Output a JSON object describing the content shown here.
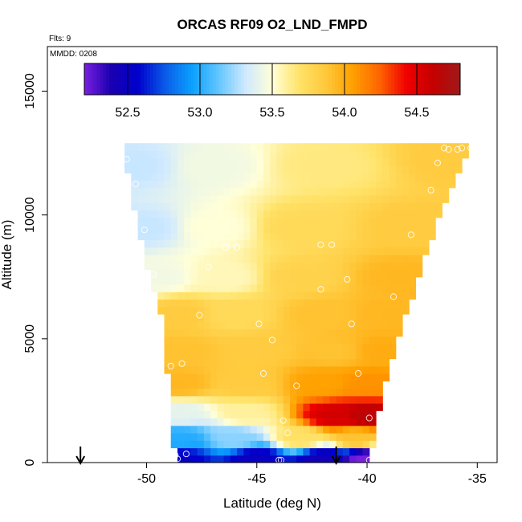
{
  "chart_data": {
    "type": "heatmap",
    "title": "ORCAS RF09 O2_LND_FMPD",
    "subtitle": "Flts: 9",
    "annotation": "MMDD: 0208",
    "xlabel": "Latitude (deg N)",
    "ylabel": "Altitude (m)",
    "xlim": [
      -54.5,
      -34.1
    ],
    "ylim": [
      0,
      16800
    ],
    "xticks": [
      -50,
      -45,
      -40,
      -35
    ],
    "xtick_labels": [
      "-50",
      "-45",
      "-40",
      "-35"
    ],
    "yticks": [
      0,
      5000,
      10000,
      15000
    ],
    "ytick_labels": [
      "0",
      "5000",
      "10000",
      "15000"
    ],
    "colorbar": {
      "range": [
        52.2,
        54.8
      ],
      "ticks": [
        52.5,
        53.0,
        53.5,
        54.0,
        54.5
      ],
      "tick_labels": [
        "52.5",
        "53.0",
        "53.5",
        "54.0",
        "54.5"
      ],
      "colors": [
        "#7a1fe0",
        "#1a00b0",
        "#0000cc",
        "#0a5ae8",
        "#0aa0ff",
        "#62c6ff",
        "#cfe9ff",
        "#ffffd8",
        "#ffe36a",
        "#ffc83a",
        "#ffa000",
        "#ff6400",
        "#f00000",
        "#c40000",
        "#a01a1a"
      ],
      "placement": "top inside plot"
    },
    "envelope": {
      "west": [
        [
          -51.0,
          12300
        ],
        [
          -50.5,
          10000
        ],
        [
          -50.0,
          8000
        ],
        [
          -49.7,
          7000
        ],
        [
          -49.3,
          6000
        ],
        [
          -49.1,
          4000
        ],
        [
          -48.9,
          2500
        ],
        [
          -48.8,
          1500
        ],
        [
          -48.7,
          0
        ]
      ],
      "east": [
        [
          -35.3,
          12800
        ],
        [
          -36.5,
          10500
        ],
        [
          -37.5,
          8000
        ],
        [
          -38.2,
          6000
        ],
        [
          -38.9,
          4000
        ],
        [
          -39.4,
          2500
        ],
        [
          -39.7,
          1000
        ],
        [
          -39.8,
          0
        ]
      ]
    },
    "field_nodes": [
      {
        "lat": -50.5,
        "alt": 12000,
        "value": 53.3
      },
      {
        "lat": -47.0,
        "alt": 12000,
        "value": 53.45
      },
      {
        "lat": -42.0,
        "alt": 12000,
        "value": 53.65
      },
      {
        "lat": -36.0,
        "alt": 12300,
        "value": 53.85
      },
      {
        "lat": -50.0,
        "alt": 9500,
        "value": 53.3
      },
      {
        "lat": -47.0,
        "alt": 9500,
        "value": 53.5
      },
      {
        "lat": -43.0,
        "alt": 9500,
        "value": 53.75
      },
      {
        "lat": -38.0,
        "alt": 9500,
        "value": 53.85
      },
      {
        "lat": -49.5,
        "alt": 7500,
        "value": 53.45
      },
      {
        "lat": -46.5,
        "alt": 7500,
        "value": 53.55
      },
      {
        "lat": -43.0,
        "alt": 7500,
        "value": 53.8
      },
      {
        "lat": -38.5,
        "alt": 7500,
        "value": 53.95
      },
      {
        "lat": -48.5,
        "alt": 6000,
        "value": 53.85
      },
      {
        "lat": -46.0,
        "alt": 6000,
        "value": 53.75
      },
      {
        "lat": -42.0,
        "alt": 6000,
        "value": 53.9
      },
      {
        "lat": -39.0,
        "alt": 6000,
        "value": 53.95
      },
      {
        "lat": -48.5,
        "alt": 4500,
        "value": 53.9
      },
      {
        "lat": -45.0,
        "alt": 4500,
        "value": 53.85
      },
      {
        "lat": -41.5,
        "alt": 4500,
        "value": 53.9
      },
      {
        "lat": -39.3,
        "alt": 4500,
        "value": 54.0
      },
      {
        "lat": -48.5,
        "alt": 3200,
        "value": 53.95
      },
      {
        "lat": -45.5,
        "alt": 3200,
        "value": 53.85
      },
      {
        "lat": -42.0,
        "alt": 3200,
        "value": 54.05
      },
      {
        "lat": -40.0,
        "alt": 3200,
        "value": 54.1
      },
      {
        "lat": -48.5,
        "alt": 2000,
        "value": 53.4
      },
      {
        "lat": -45.5,
        "alt": 2000,
        "value": 53.6
      },
      {
        "lat": -41.5,
        "alt": 1900,
        "value": 54.55
      },
      {
        "lat": -40.0,
        "alt": 1900,
        "value": 54.65
      },
      {
        "lat": -48.5,
        "alt": 1000,
        "value": 53.0
      },
      {
        "lat": -46.0,
        "alt": 1000,
        "value": 53.2
      },
      {
        "lat": -43.0,
        "alt": 1000,
        "value": 53.7
      },
      {
        "lat": -40.5,
        "alt": 1000,
        "value": 53.9
      },
      {
        "lat": -48.5,
        "alt": 150,
        "value": 52.55
      },
      {
        "lat": -45.0,
        "alt": 150,
        "value": 52.5
      },
      {
        "lat": -42.0,
        "alt": 150,
        "value": 52.45
      },
      {
        "lat": -40.0,
        "alt": 150,
        "value": 52.2
      }
    ],
    "observation_points": [
      [
        -50.9,
        12250
      ],
      [
        -50.5,
        11250
      ],
      [
        -50.1,
        9400
      ],
      [
        -49.7,
        7600
      ],
      [
        -49.4,
        5800
      ],
      [
        -47.6,
        5950
      ],
      [
        -46.4,
        8700
      ],
      [
        -45.9,
        8700
      ],
      [
        -47.2,
        7900
      ],
      [
        -48.4,
        4000
      ],
      [
        -48.9,
        3900
      ],
      [
        -44.9,
        5600
      ],
      [
        -44.3,
        4950
      ],
      [
        -44.7,
        3600
      ],
      [
        -43.2,
        3100
      ],
      [
        -42.1,
        7000
      ],
      [
        -41.6,
        8800
      ],
      [
        -42.1,
        8800
      ],
      [
        -40.9,
        7400
      ],
      [
        -40.7,
        5600
      ],
      [
        -40.4,
        3600
      ],
      [
        -38.8,
        6700
      ],
      [
        -38.0,
        9200
      ],
      [
        -37.1,
        11000
      ],
      [
        -36.8,
        12100
      ],
      [
        -36.5,
        12700
      ],
      [
        -35.7,
        12700
      ],
      [
        -35.3,
        12700
      ],
      [
        -36.3,
        12650
      ],
      [
        -35.9,
        12650
      ],
      [
        -38.3,
        4800
      ],
      [
        -38.6,
        2900
      ],
      [
        -39.9,
        1800
      ],
      [
        -43.8,
        1700
      ],
      [
        -43.6,
        1200
      ],
      [
        -48.7,
        300
      ],
      [
        -48.6,
        150
      ],
      [
        -48.2,
        350
      ],
      [
        -44.0,
        100
      ],
      [
        -43.9,
        100
      ],
      [
        -39.9,
        100
      ]
    ],
    "arrows": [
      {
        "lat": -53.0,
        "direction": "down"
      },
      {
        "lat": -41.4,
        "direction": "down"
      }
    ]
  }
}
